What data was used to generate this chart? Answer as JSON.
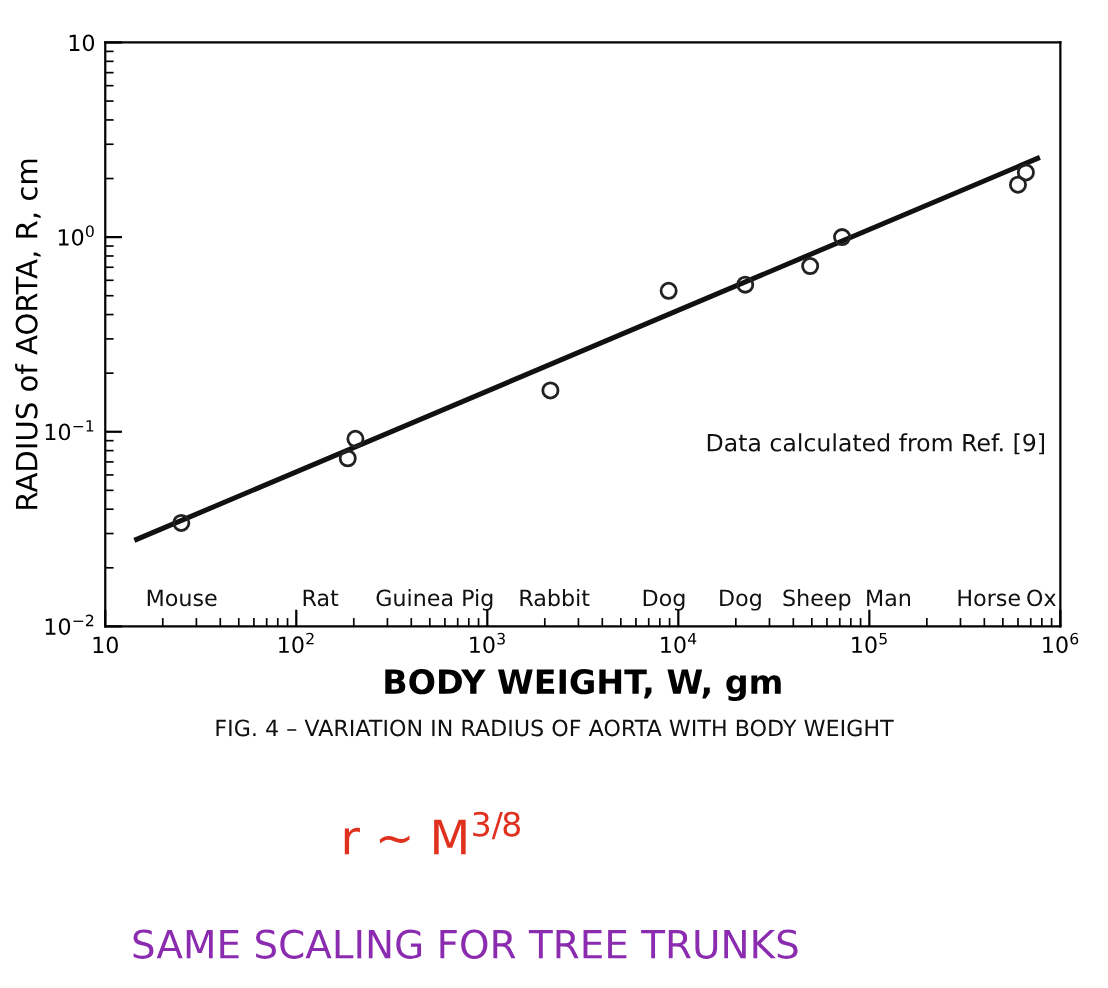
{
  "chart_data": {
    "type": "scatter",
    "xlabel": "BODY WEIGHT, W, gm",
    "ylabel": "RADIUS of AORTA, R, cm",
    "log": "xy",
    "grid": false,
    "marker": "circle",
    "xlim": [
      10,
      1000000
    ],
    "ylim": [
      0.01,
      10
    ],
    "xticks": [
      10,
      {
        "value": 100,
        "label": "10$^{2}$"
      },
      {
        "value": 1000,
        "label": "10$^{3}$"
      },
      {
        "value": 10000,
        "label": "10$^{4}$"
      },
      {
        "value": 100000,
        "label": "10$^{5}$"
      },
      {
        "value": 1000000,
        "label": "10$^{6}$"
      }
    ],
    "yticks": [
      {
        "value": 0.01,
        "label": "10$^{−2}$"
      },
      {
        "value": 0.1,
        "label": "10$^{−1}$"
      },
      {
        "value": 1,
        "label": "10$^{0}$"
      },
      10
    ],
    "series": [
      {
        "color": "#222222",
        "x": [
          25,
          186,
          204,
          2140,
          8900,
          22400,
          49000,
          72000,
          600000,
          660000
        ],
        "values": [
          0.034,
          0.073,
          0.092,
          0.163,
          0.53,
          0.57,
          0.71,
          1.0,
          1.86,
          2.15
        ]
      },
      {
        "type": "line",
        "color": "#111111",
        "marker": "none",
        "x": [
          14.6,
          760000
        ],
        "values": [
          0.028,
          2.54
        ]
      }
    ],
    "annotations": [
      "Mouse",
      "Rat",
      "Guinea Pig",
      "Rabbit",
      "Dog",
      "Dog",
      "Sheep",
      "Man",
      "Horse",
      "Ox",
      "Data calculated from Ref. [9]",
      "FIG. 4 – VARIATION IN RADIUS OF AORTA WITH BODY WEIGHT",
      "r ~ M$^{3/8}$",
      "SAME SCALING FOR TREE TRUNKS"
    ]
  }
}
